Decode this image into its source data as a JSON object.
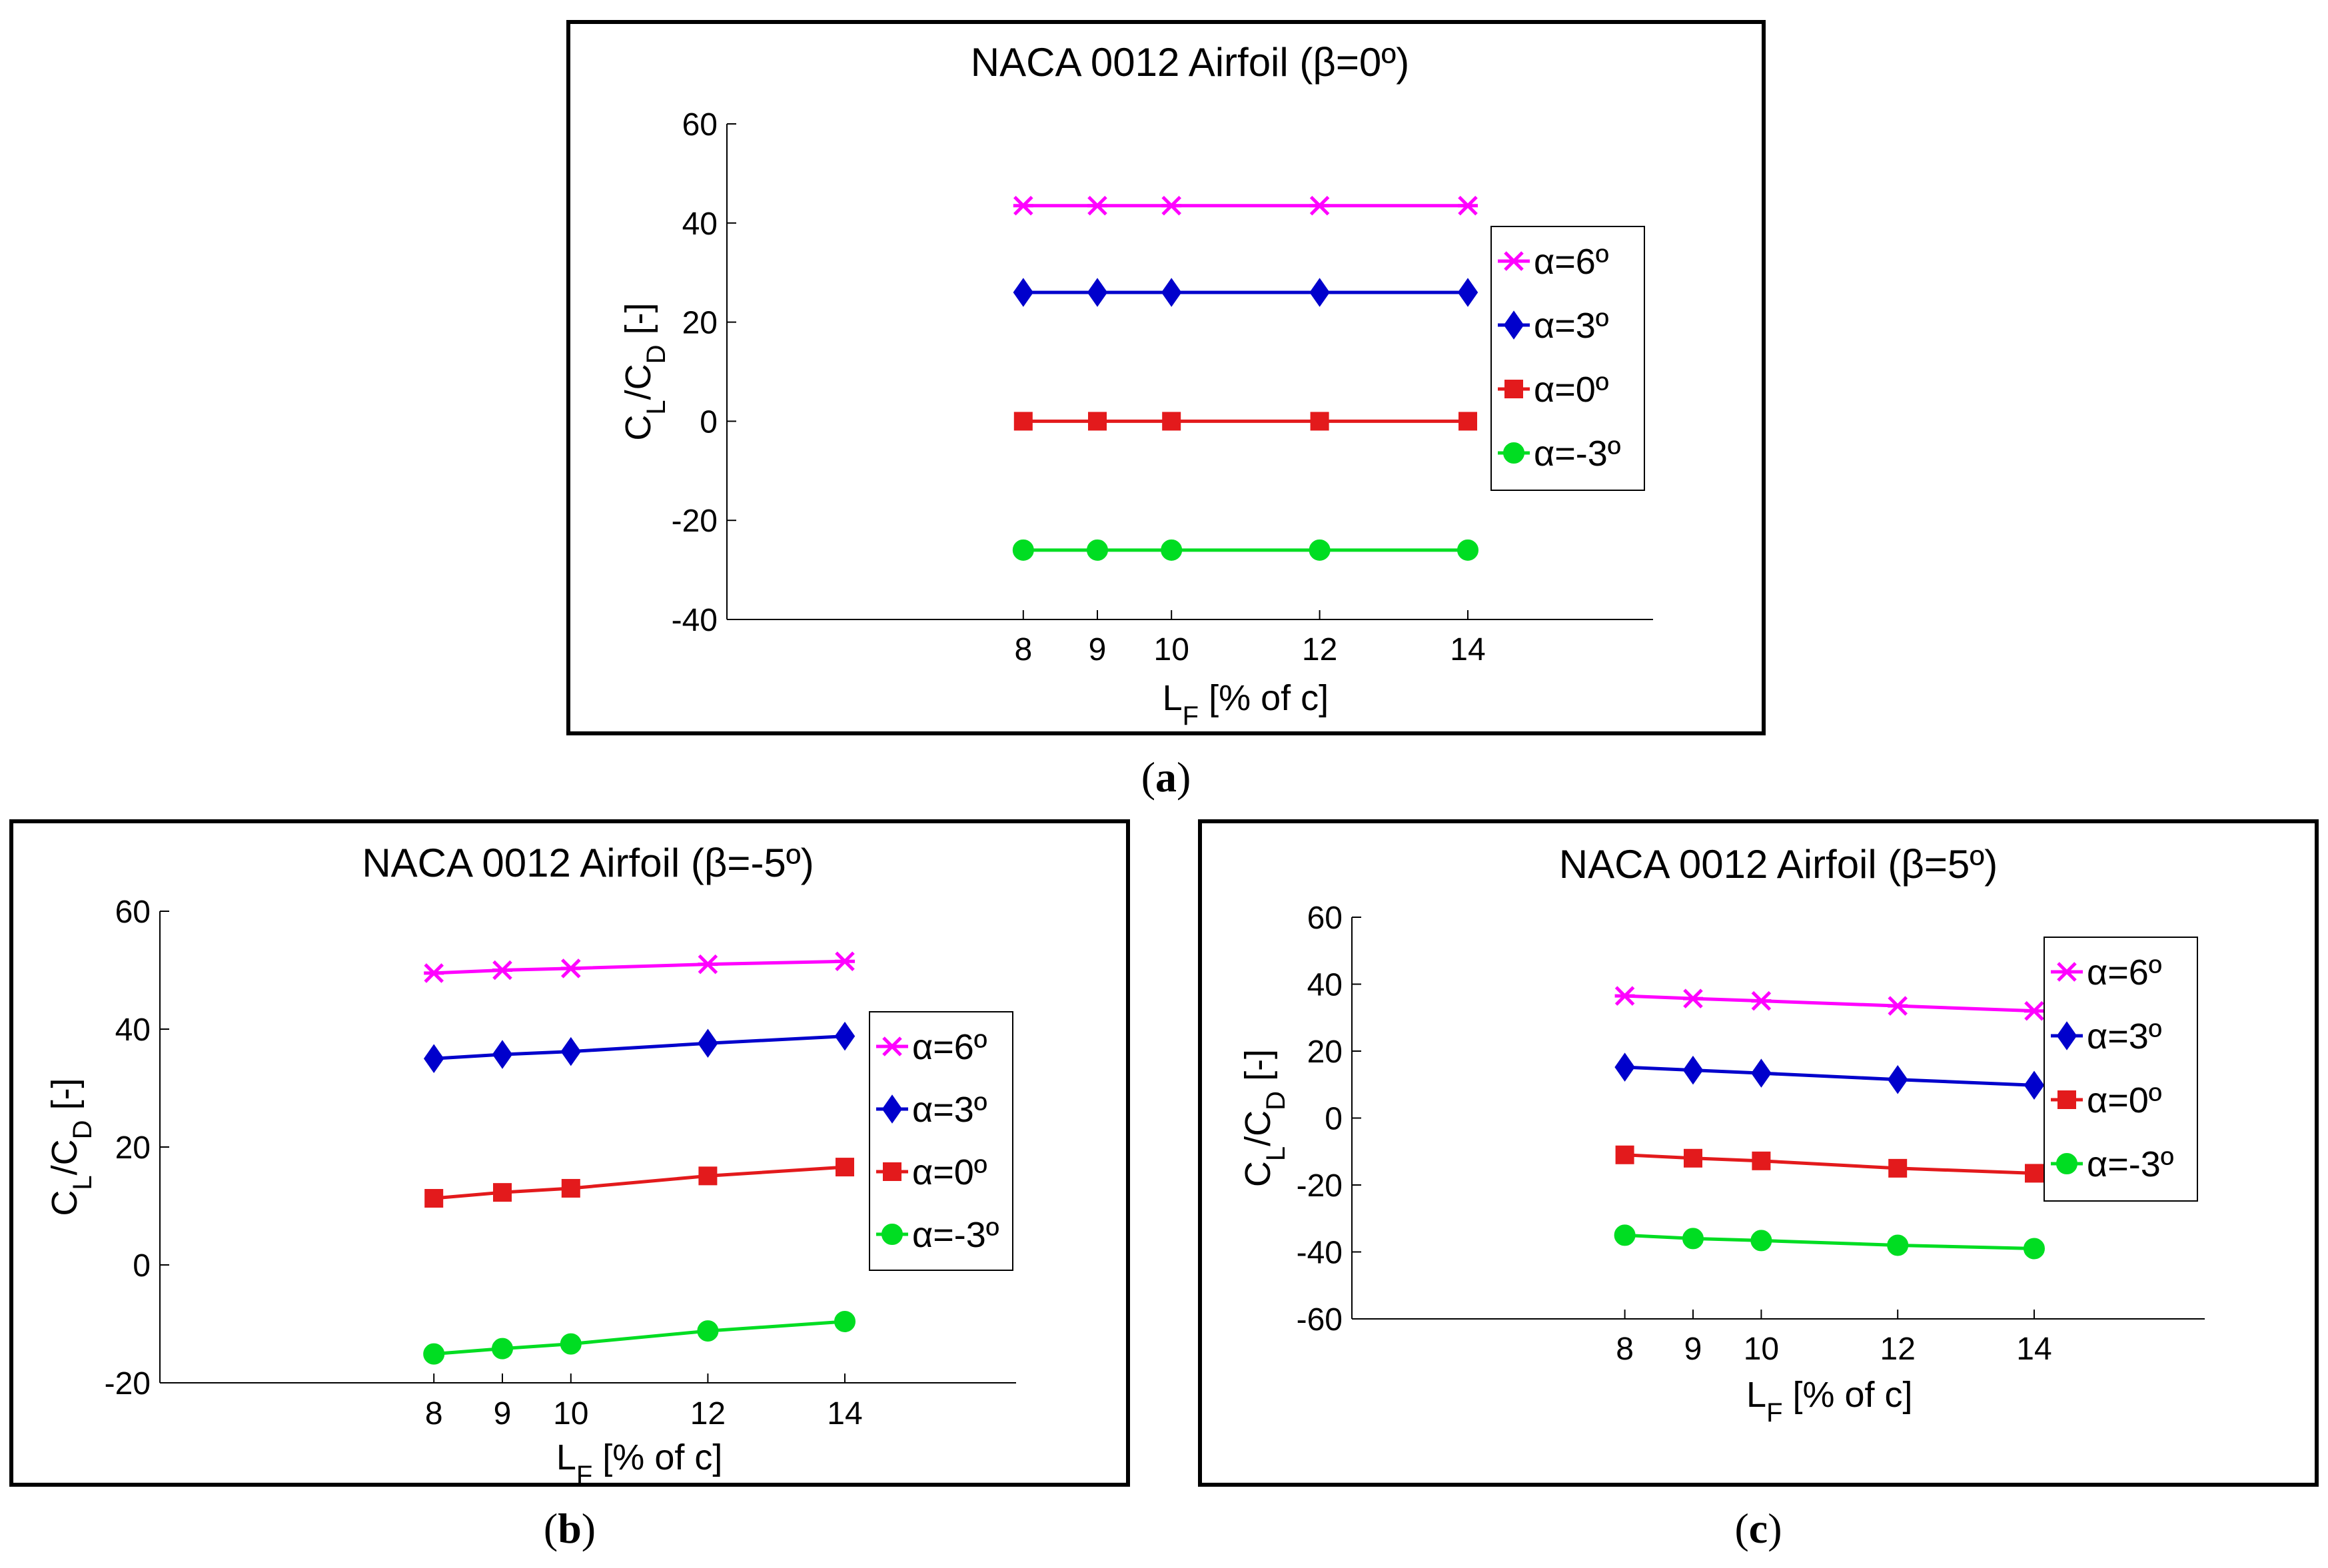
{
  "chart_data": [
    {
      "panel": "a",
      "type": "line",
      "title": "NACA 0012 Airfoil (β=0º)",
      "xlabel": "L",
      "xlabel_sub": "F",
      "xlabel_rest": " [% of c]",
      "ylabel": "C",
      "ylabel_sub1": "L",
      "ylabel_mid": "/C",
      "ylabel_sub2": "D",
      "ylabel_rest": " [-]",
      "x": [
        8,
        9,
        10,
        12,
        14
      ],
      "xticks": [
        8,
        9,
        10,
        12,
        14
      ],
      "xlim": [
        4,
        16.5
      ],
      "yticks": [
        60,
        40,
        20,
        0,
        -20,
        -40
      ],
      "ylim": [
        -40,
        60
      ],
      "legend_position": "right",
      "series": [
        {
          "name": "α=6º",
          "color": "#ff00ff",
          "marker": "star",
          "values": [
            43.5,
            43.5,
            43.5,
            43.5,
            43.5
          ]
        },
        {
          "name": "α=3º",
          "color": "#0000cc",
          "marker": "diamond",
          "values": [
            26,
            26,
            26,
            26,
            26
          ]
        },
        {
          "name": "α=0º",
          "color": "#e31a1c",
          "marker": "square",
          "values": [
            0,
            0,
            0,
            0,
            0
          ]
        },
        {
          "name": "α=-3º",
          "color": "#00dd22",
          "marker": "circle",
          "values": [
            -26,
            -26,
            -26,
            -26,
            -26
          ]
        }
      ]
    },
    {
      "panel": "b",
      "type": "line",
      "title": "NACA 0012 Airfoil (β=-5º)",
      "xlabel": "L",
      "xlabel_sub": "F",
      "xlabel_rest": " [% of c]",
      "ylabel": "C",
      "ylabel_sub1": "L",
      "ylabel_mid": "/C",
      "ylabel_sub2": "D",
      "ylabel_rest": " [-]",
      "x": [
        8,
        9,
        10,
        12,
        14
      ],
      "xticks": [
        8,
        9,
        10,
        12,
        14
      ],
      "xlim": [
        4,
        16.5
      ],
      "yticks": [
        60,
        40,
        20,
        0,
        -20
      ],
      "ylim": [
        -20,
        60
      ],
      "legend_position": "right",
      "series": [
        {
          "name": "α=6º",
          "color": "#ff00ff",
          "marker": "star",
          "values": [
            49.5,
            50,
            50.3,
            51,
            51.5
          ]
        },
        {
          "name": "α=3º",
          "color": "#0000cc",
          "marker": "diamond",
          "values": [
            35,
            35.7,
            36.2,
            37.6,
            38.8
          ]
        },
        {
          "name": "α=0º",
          "color": "#e31a1c",
          "marker": "square",
          "values": [
            11.3,
            12.3,
            13,
            15.1,
            16.6
          ]
        },
        {
          "name": "α=-3º",
          "color": "#00dd22",
          "marker": "circle",
          "values": [
            -15.1,
            -14.2,
            -13.4,
            -11.2,
            -9.6
          ]
        }
      ]
    },
    {
      "panel": "c",
      "type": "line",
      "title": "NACA 0012 Airfoil (β=5º)",
      "xlabel": "L",
      "xlabel_sub": "F",
      "xlabel_rest": " [% of c]",
      "ylabel": "C",
      "ylabel_sub1": "L",
      "ylabel_mid": "/C",
      "ylabel_sub2": "D",
      "ylabel_rest": " [-]",
      "x": [
        8,
        9,
        10,
        12,
        14
      ],
      "xticks": [
        8,
        9,
        10,
        12,
        14
      ],
      "xlim": [
        4,
        16.5
      ],
      "yticks": [
        60,
        40,
        20,
        0,
        -20,
        -40,
        -60
      ],
      "ylim": [
        -60,
        60
      ],
      "legend_position": "right",
      "series": [
        {
          "name": "α=6º",
          "color": "#ff00ff",
          "marker": "star",
          "values": [
            36.5,
            35.7,
            35,
            33.5,
            32
          ]
        },
        {
          "name": "α=3º",
          "color": "#0000cc",
          "marker": "diamond",
          "values": [
            15.2,
            14.3,
            13.4,
            11.5,
            9.8
          ]
        },
        {
          "name": "α=0º",
          "color": "#e31a1c",
          "marker": "square",
          "values": [
            -11,
            -12,
            -12.8,
            -15,
            -16.5
          ]
        },
        {
          "name": "α=-3º",
          "color": "#00dd22",
          "marker": "circle",
          "values": [
            -35,
            -36,
            -36.6,
            -38,
            -39
          ]
        }
      ]
    }
  ],
  "captions": {
    "a": "a",
    "b": "b",
    "c": "c"
  }
}
